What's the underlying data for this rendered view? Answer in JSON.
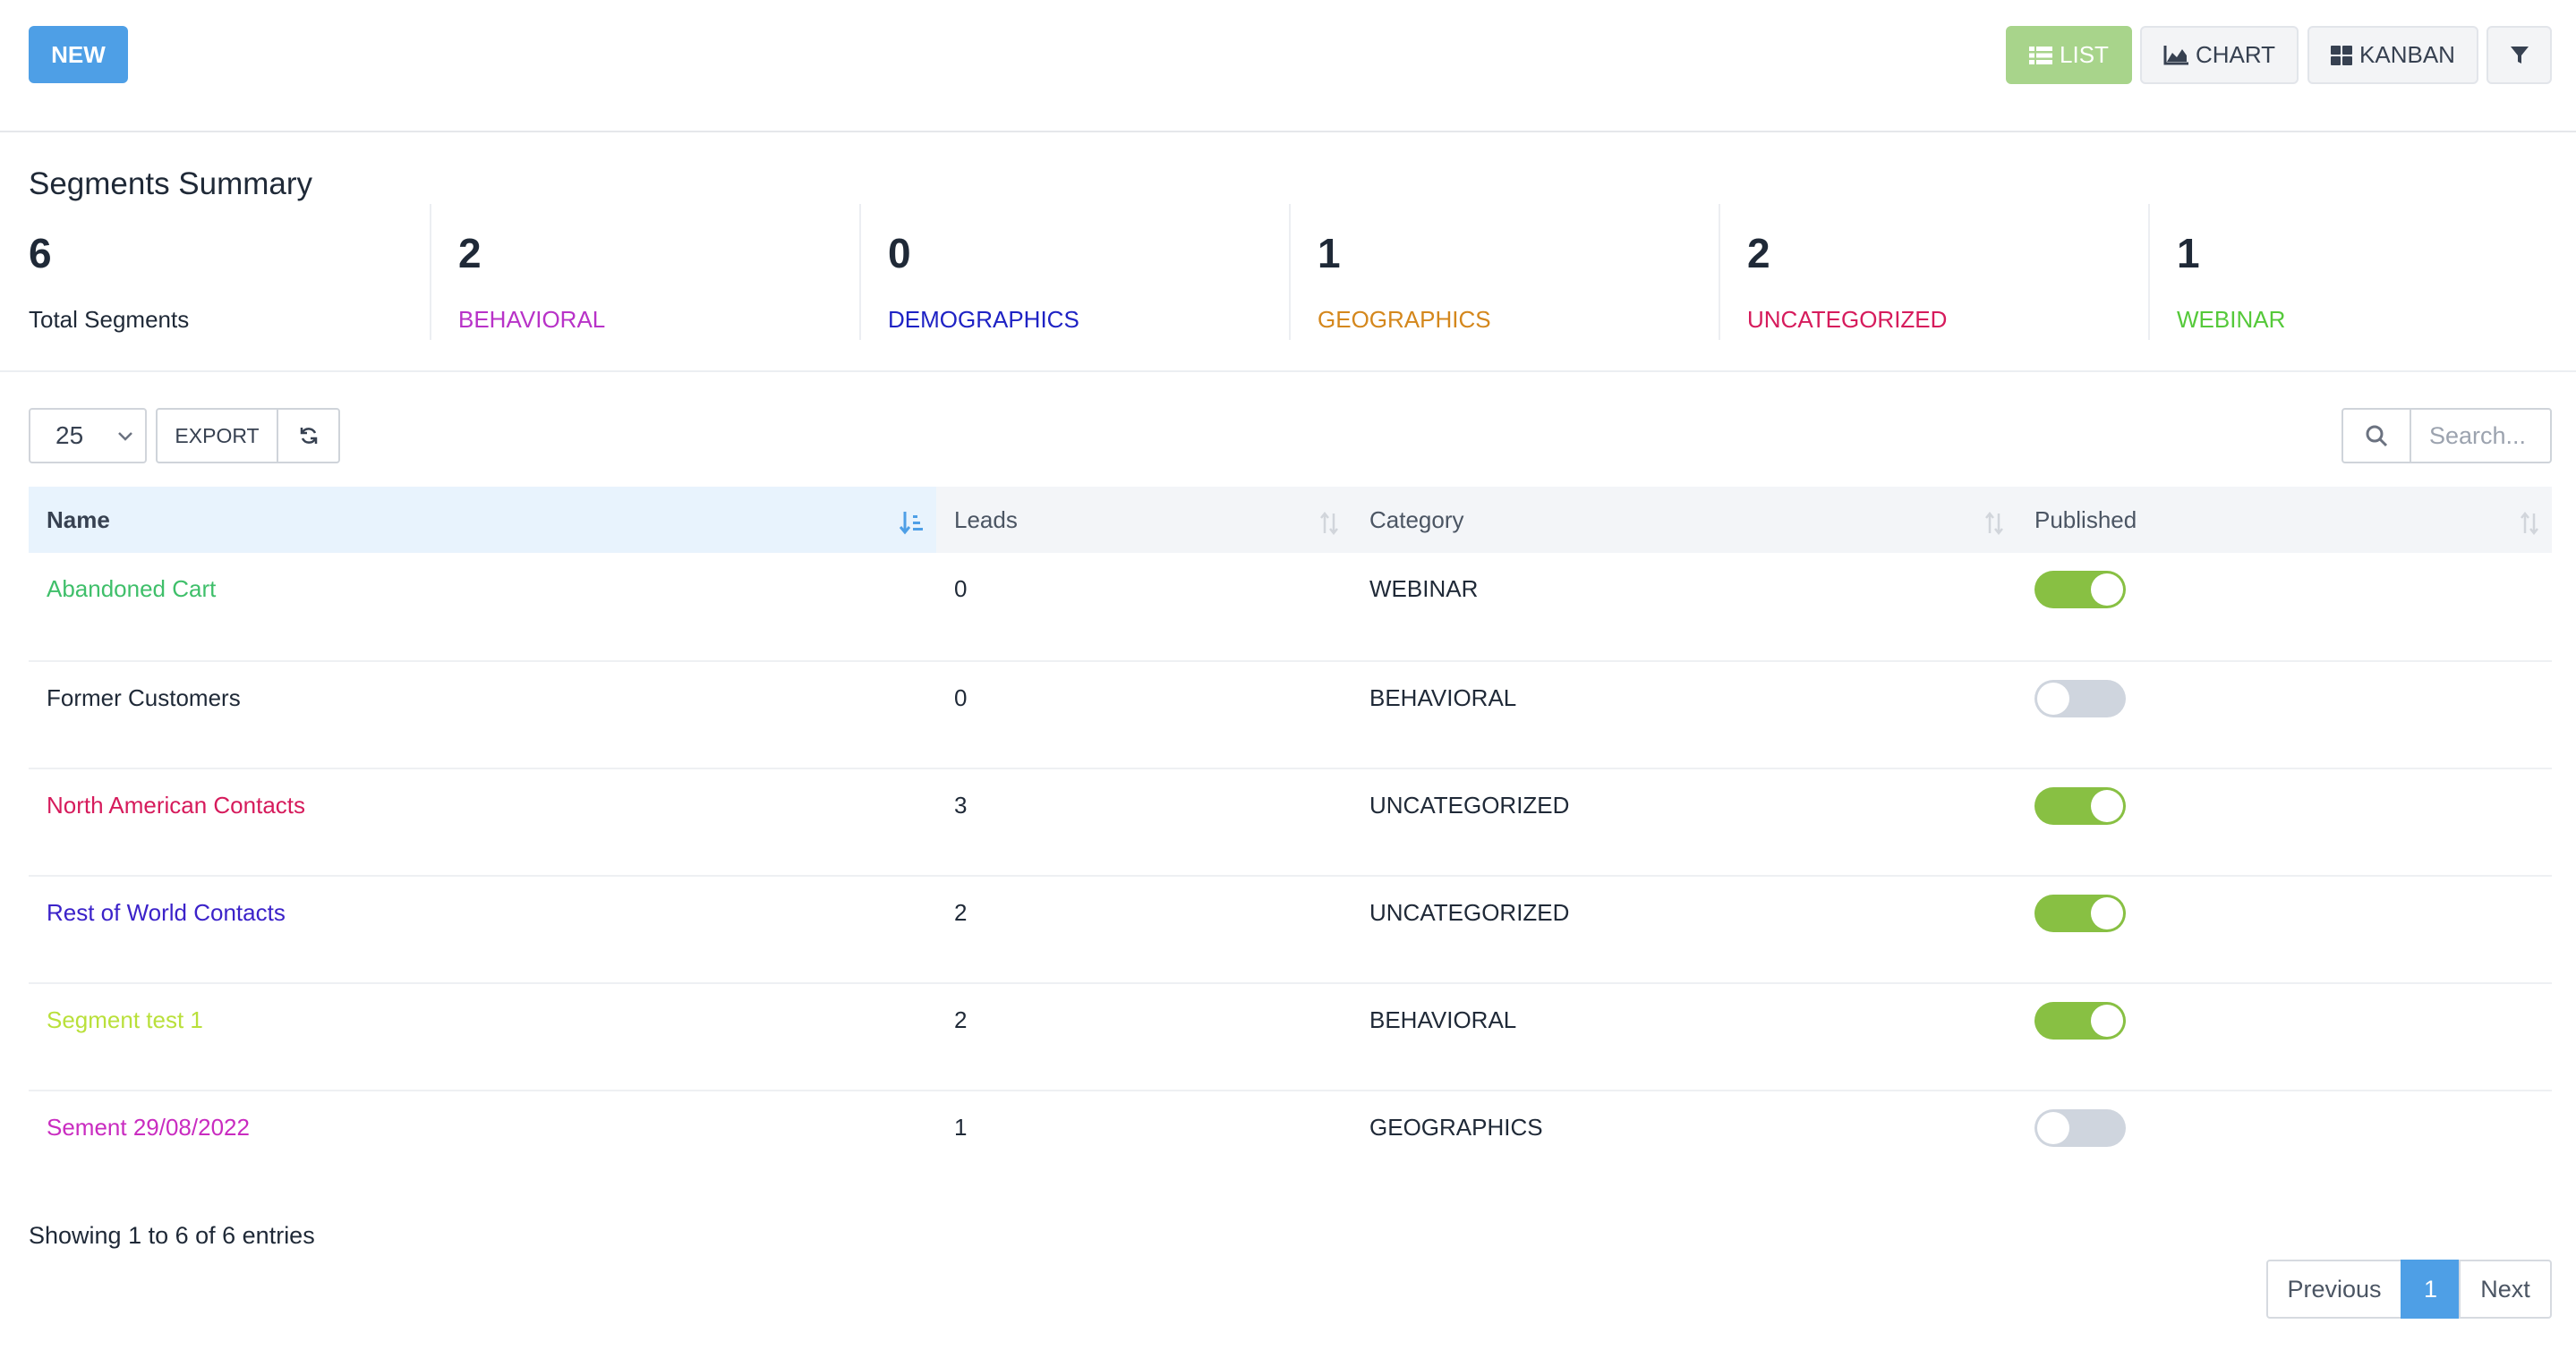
{
  "toolbar": {
    "new_label": "NEW",
    "list_label": "LIST",
    "chart_label": "CHART",
    "kanban_label": "KANBAN",
    "active_view": "LIST"
  },
  "summary": {
    "title": "Segments Summary",
    "stats": [
      {
        "value": "6",
        "label": "Total Segments",
        "color": "#1f2937"
      },
      {
        "value": "2",
        "label": "BEHAVIORAL",
        "color": "#b832c8"
      },
      {
        "value": "0",
        "label": "DEMOGRAPHICS",
        "color": "#1e22c4"
      },
      {
        "value": "1",
        "label": "GEOGRAPHICS",
        "color": "#d4871c"
      },
      {
        "value": "2",
        "label": "UNCATEGORIZED",
        "color": "#d61b5c"
      },
      {
        "value": "1",
        "label": "WEBINAR",
        "color": "#55c93a"
      }
    ]
  },
  "controls": {
    "page_size": "25",
    "export_label": "EXPORT",
    "search_placeholder": "Search..."
  },
  "table": {
    "columns": [
      "Name",
      "Leads",
      "Category",
      "Published"
    ],
    "rows": [
      {
        "name": "Abandoned Cart",
        "name_color": "#3fbf6a",
        "leads": "0",
        "category": "WEBINAR",
        "published": true
      },
      {
        "name": "Former Customers",
        "name_color": "#1f2937",
        "leads": "0",
        "category": "BEHAVIORAL",
        "published": false
      },
      {
        "name": "North American Contacts",
        "name_color": "#d61b5c",
        "leads": "3",
        "category": "UNCATEGORIZED",
        "published": true
      },
      {
        "name": "Rest of World Contacts",
        "name_color": "#3b22c9",
        "leads": "2",
        "category": "UNCATEGORIZED",
        "published": true
      },
      {
        "name": "Segment test 1",
        "name_color": "#b9e03a",
        "leads": "2",
        "category": "BEHAVIORAL",
        "published": true
      },
      {
        "name": "Sement 29/08/2022",
        "name_color": "#c92cc0",
        "leads": "1",
        "category": "GEOGRAPHICS",
        "published": false
      }
    ]
  },
  "pagination": {
    "info": "Showing 1 to 6 of 6 entries",
    "previous_label": "Previous",
    "current_page": "1",
    "next_label": "Next"
  }
}
